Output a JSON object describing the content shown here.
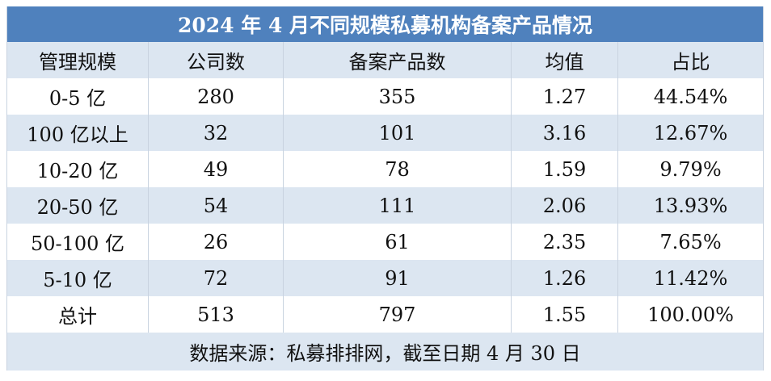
{
  "header": {
    "title": "2024 年 4 月不同规模私募机构备案产品情况"
  },
  "table": {
    "columns": [
      "管理规模",
      "公司数",
      "备案产品数",
      "均值",
      "占比"
    ],
    "rows": [
      [
        "0-5 亿",
        "280",
        "355",
        "1.27",
        "44.54%"
      ],
      [
        "100 亿以上",
        "32",
        "101",
        "3.16",
        "12.67%"
      ],
      [
        "10-20 亿",
        "49",
        "78",
        "1.59",
        "9.79%"
      ],
      [
        "20-50 亿",
        "54",
        "111",
        "2.06",
        "13.93%"
      ],
      [
        "50-100 亿",
        "26",
        "61",
        "2.35",
        "7.65%"
      ],
      [
        "5-10 亿",
        "72",
        "91",
        "1.26",
        "11.42%"
      ],
      [
        "总计",
        "513",
        "797",
        "1.55",
        "100.00%"
      ]
    ]
  },
  "footer": {
    "source": "数据来源：私募排排网，截至日期 4 月 30 日"
  }
}
